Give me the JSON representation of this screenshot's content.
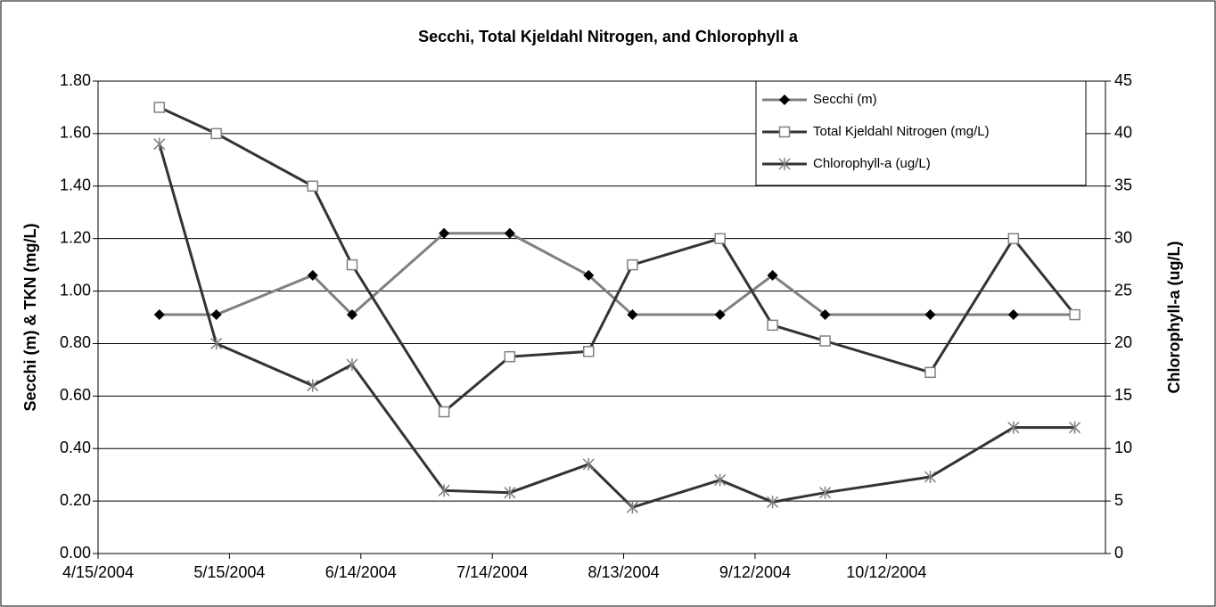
{
  "chart_data": {
    "type": "line",
    "title": "Secchi, Total Kjeldahl Nitrogen, and Chlorophyll a",
    "y_label": "Secchi (m) & TKN (mg/L)",
    "y2_label": "Chlorophyll-a (ug/L)",
    "x": [
      "4/29/2004",
      "5/12/2004",
      "6/3/2004",
      "6/12/2004",
      "7/3/2004",
      "7/18/2004",
      "8/5/2004",
      "8/15/2004",
      "9/4/2004",
      "9/16/2004",
      "9/28/2004",
      "10/22/2004",
      "11/10/2004",
      "11/24/2004"
    ],
    "xlim": [
      "4/15/2004",
      "12/1/2004"
    ],
    "xticks": [
      "4/15/2004",
      "5/15/2004",
      "6/14/2004",
      "7/14/2004",
      "8/13/2004",
      "9/12/2004",
      "10/12/2004"
    ],
    "ylim": [
      0,
      1.8
    ],
    "yticks": [
      {
        "value": 0,
        "label": "0.00"
      },
      {
        "value": 0.2,
        "label": "0.20"
      },
      {
        "value": 0.4,
        "label": "0.40"
      },
      {
        "value": 0.6,
        "label": "0.60"
      },
      {
        "value": 0.8,
        "label": "0.80"
      },
      {
        "value": 1,
        "label": "1.00"
      },
      {
        "value": 1.2,
        "label": "1.20"
      },
      {
        "value": 1.4,
        "label": "1.40"
      },
      {
        "value": 1.6,
        "label": "1.60"
      },
      {
        "value": 1.8,
        "label": "1.80"
      }
    ],
    "y2lim": [
      0,
      45
    ],
    "y2ticks": [
      0,
      5,
      10,
      15,
      20,
      25,
      30,
      35,
      40,
      45
    ],
    "grid": true,
    "legend": "top-right",
    "series": [
      {
        "name": "Secchi (m)",
        "color": "#808080",
        "marker": "diamond",
        "marker_color": "#000000",
        "values": [
          0.91,
          0.91,
          1.06,
          0.91,
          1.22,
          1.22,
          1.06,
          0.91,
          0.91,
          1.06,
          0.91,
          0.91,
          0.91,
          0.91
        ]
      },
      {
        "name": "Total Kjeldahl Nitrogen (mg/L)",
        "color": "#333333",
        "marker": "square",
        "marker_color": "#808080",
        "values": [
          1.7,
          1.6,
          1.4,
          1.1,
          0.54,
          0.75,
          0.77,
          1.1,
          1.2,
          0.87,
          0.81,
          0.69,
          1.2,
          0.91
        ]
      },
      {
        "name": "Chlorophyll-a (ug/L)",
        "color": "#333333",
        "marker": "star",
        "marker_color": "#808080",
        "axis": "y2",
        "values": [
          39,
          20,
          16,
          18,
          6,
          5.8,
          8.5,
          4.4,
          7,
          4.9,
          5.8,
          7.3,
          12,
          12
        ]
      }
    ]
  }
}
